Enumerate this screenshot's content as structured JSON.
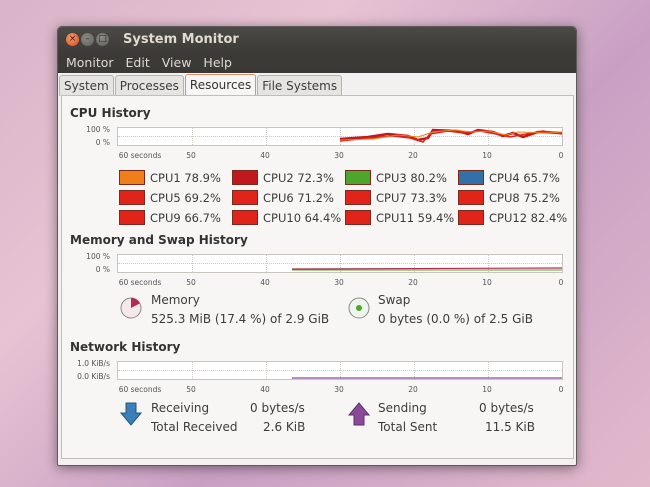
{
  "window": {
    "title": "System Monitor"
  },
  "menu": [
    "Monitor",
    "Edit",
    "View",
    "Help"
  ],
  "tabs": [
    {
      "label": "System",
      "active": false
    },
    {
      "label": "Processes",
      "active": false
    },
    {
      "label": "Resources",
      "active": true
    },
    {
      "label": "File Systems",
      "active": false
    }
  ],
  "cpu": {
    "title": "CPU History",
    "ylabels": [
      "100 %",
      "0 %"
    ],
    "xlabels": [
      "60 seconds",
      "50",
      "40",
      "30",
      "20",
      "10",
      "0"
    ],
    "items": [
      {
        "label": "CPU1",
        "value": "78.9%",
        "color": "#f07f1a"
      },
      {
        "label": "CPU2",
        "value": "72.3%",
        "color": "#c0181d"
      },
      {
        "label": "CPU3",
        "value": "80.2%",
        "color": "#4ea52c"
      },
      {
        "label": "CPU4",
        "value": "65.7%",
        "color": "#3270a8"
      },
      {
        "label": "CPU5",
        "value": "69.2%",
        "color": "#e2231a"
      },
      {
        "label": "CPU6",
        "value": "71.2%",
        "color": "#e2231a"
      },
      {
        "label": "CPU7",
        "value": "73.3%",
        "color": "#e2231a"
      },
      {
        "label": "CPU8",
        "value": "75.2%",
        "color": "#e2231a"
      },
      {
        "label": "CPU9",
        "value": "66.7%",
        "color": "#e2231a"
      },
      {
        "label": "CPU10",
        "value": "64.4%",
        "color": "#e2231a"
      },
      {
        "label": "CPU11",
        "value": "59.4%",
        "color": "#e2231a"
      },
      {
        "label": "CPU12",
        "value": "82.4%",
        "color": "#e2231a"
      }
    ]
  },
  "memory": {
    "title": "Memory and Swap History",
    "ylabels": [
      "100 %",
      "0 %"
    ],
    "xlabels": [
      "60 seconds",
      "50",
      "40",
      "30",
      "20",
      "10",
      "0"
    ],
    "mem_label": "Memory",
    "mem_value": "525.3 MiB (17.4 %) of 2.9 GiB",
    "mem_fraction": 0.174,
    "swap_label": "Swap",
    "swap_value": "0 bytes (0.0 %) of 2.5 GiB",
    "swap_fraction": 0.0
  },
  "network": {
    "title": "Network History",
    "ylabels": [
      "1.0 KiB/s",
      "0.0 KiB/s"
    ],
    "xlabels": [
      "60 seconds",
      "50",
      "40",
      "30",
      "20",
      "10",
      "0"
    ],
    "receiving_label": "Receiving",
    "receiving_value": "0 bytes/s",
    "total_received_label": "Total Received",
    "total_received_value": "2.6 KiB",
    "sending_label": "Sending",
    "sending_value": "0 bytes/s",
    "total_sent_label": "Total Sent",
    "total_sent_value": "11.5 KiB"
  },
  "colors": {
    "receive_arrow": "#3b7fb8",
    "send_arrow": "#8a4a9a",
    "memory_pie": "#b22a54",
    "swap_pie": "#4ea52c"
  }
}
